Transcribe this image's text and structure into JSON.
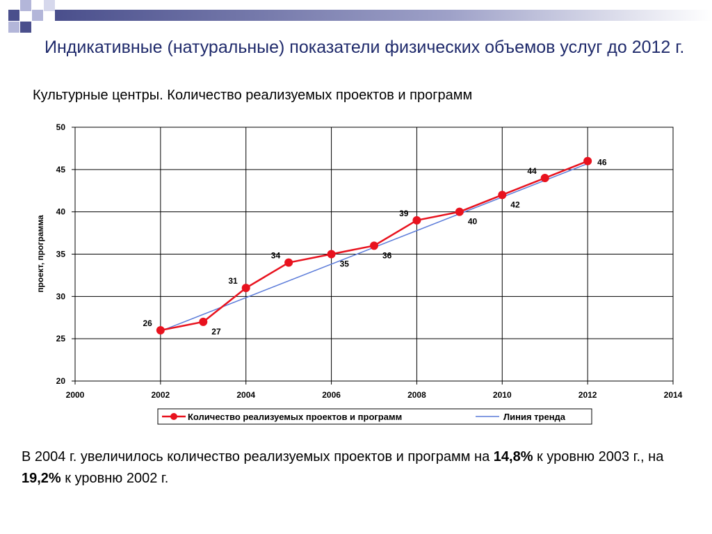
{
  "slide": {
    "title": "Индикативные (натуральные) показатели физических объемов услуг до 2012 г.",
    "subtitle": "Культурные центры. Количество реализуемых проектов и программ",
    "note": {
      "p1": "В 2004 г. увеличилось количество  реализуемых проектов и программ на ",
      "b1": "14,8%",
      "p2": " к уровню 2003 г.,  на ",
      "b2": "19,2%",
      "p3": " к уровню 2002 г."
    }
  },
  "colors": {
    "title": "#1f2a6b",
    "series": "#e8121e",
    "trend": "#5b7bd9",
    "deco_dark": "#4a4f8c",
    "deco_light": "#b3b6d9"
  },
  "chart_data": {
    "type": "line",
    "ylabel": "проект, программа",
    "xlim": [
      2000,
      2014
    ],
    "ylim": [
      20,
      50
    ],
    "x_ticks": [
      2000,
      2002,
      2004,
      2006,
      2008,
      2010,
      2012,
      2014
    ],
    "y_ticks": [
      20,
      25,
      30,
      35,
      40,
      45,
      50
    ],
    "grid": true,
    "legend_position": "bottom",
    "series": [
      {
        "name": "Количество реализуемых проектов и программ",
        "x": [
          2002,
          2003,
          2004,
          2005,
          2006,
          2007,
          2008,
          2009,
          2010,
          2011,
          2012
        ],
        "values": [
          26,
          27,
          31,
          34,
          35,
          36,
          39,
          40,
          42,
          44,
          46
        ]
      }
    ],
    "trendline": {
      "name": "Линия тренда",
      "x": [
        2002,
        2012
      ],
      "values": [
        25.9,
        45.7
      ]
    }
  }
}
